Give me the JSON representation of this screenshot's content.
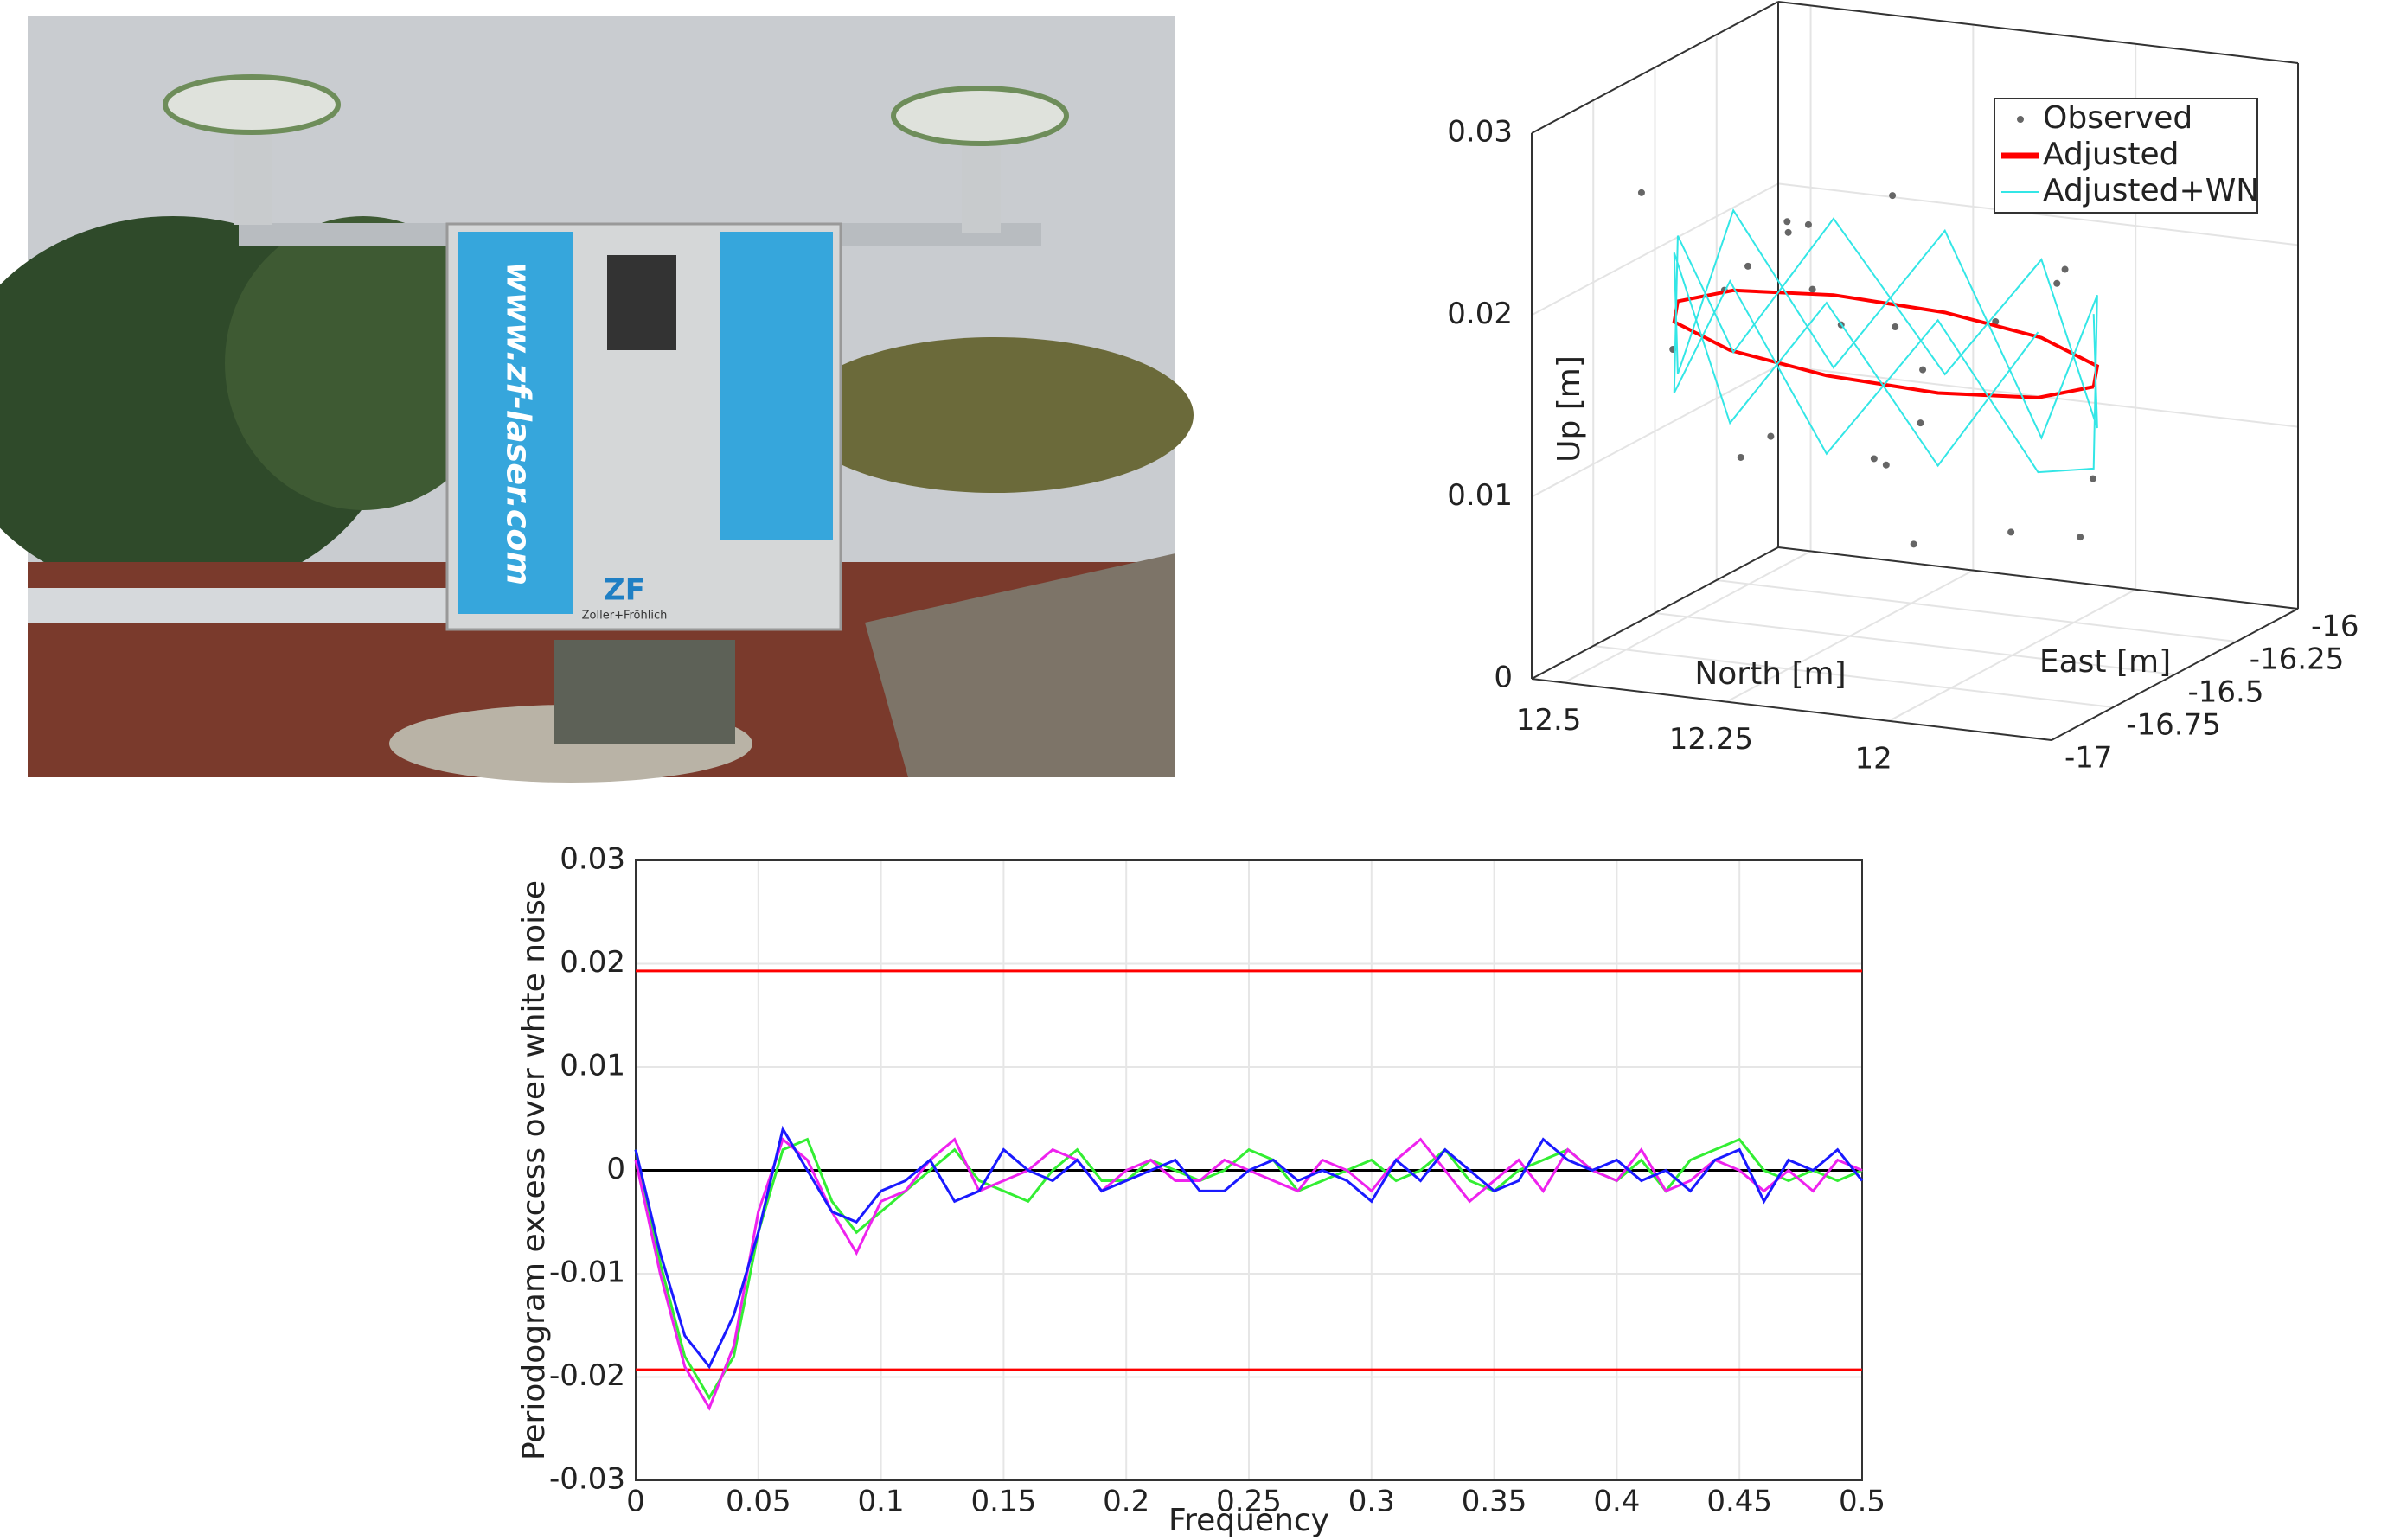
{
  "photo": {
    "label": "www.zf-laser.com",
    "logo": "ZF",
    "brand": "Zoller+Fröhlich"
  },
  "chart_data": [
    {
      "type": "scatter3d",
      "xlabel": "East [m]",
      "ylabel": "North [m]",
      "zlabel": "Up [m]",
      "xlim": [
        -17,
        -16
      ],
      "xticks": [
        -17,
        -16.75,
        -16.5,
        -16.25,
        -16
      ],
      "ylim": [
        11.75,
        12.55
      ],
      "yticks": [
        12,
        12.25,
        12.5
      ],
      "zlim": [
        0,
        0.03
      ],
      "zticks": [
        0,
        0.01,
        0.02,
        0.03
      ],
      "grid": true,
      "legend": "upper right",
      "series": [
        {
          "name": "Observed",
          "color": "#666666",
          "style": "points",
          "east": [
            -16.7,
            -16.55,
            -16.9,
            -16.6,
            -16.8,
            -16.52,
            -16.95,
            -16.65,
            -16.75,
            -16.58,
            -16.88,
            -16.7,
            -16.62,
            -16.98,
            -16.53,
            -16.82,
            -16.67,
            -16.9,
            -16.57,
            -16.77,
            -16.6,
            -16.93,
            -16.72,
            -16.85
          ],
          "north": [
            11.8,
            11.9,
            12.0,
            12.1,
            12.2,
            12.3,
            12.4,
            12.35,
            12.25,
            12.15,
            12.05,
            11.95,
            11.85,
            11.82,
            11.92,
            12.02,
            12.12,
            12.22,
            12.32,
            12.42,
            12.38,
            12.28,
            12.18,
            12.08
          ],
          "up": [
            0.012,
            0.022,
            0.009,
            0.016,
            0.025,
            0.019,
            0.027,
            0.021,
            0.024,
            0.018,
            0.013,
            0.02,
            0.008,
            0.011,
            0.021,
            0.015,
            0.026,
            0.014,
            0.023,
            0.017,
            0.01,
            0.022,
            0.019,
            0.013
          ]
        },
        {
          "name": "Adjusted",
          "color": "#ff0000",
          "style": "thick-line",
          "east": [
            -16.75,
            -16.63,
            -16.54,
            -16.51,
            -16.54,
            -16.63,
            -16.75,
            -16.87,
            -16.96,
            -16.99,
            -16.96,
            -16.87,
            -16.75
          ],
          "north": [
            11.78,
            11.82,
            11.94,
            12.1,
            12.26,
            12.38,
            12.42,
            12.38,
            12.26,
            12.1,
            11.94,
            11.82,
            11.78
          ],
          "up": [
            0.0175,
            0.0176,
            0.018,
            0.0185,
            0.019,
            0.0194,
            0.0195,
            0.0194,
            0.019,
            0.0185,
            0.018,
            0.0176,
            0.0175
          ]
        },
        {
          "name": "Adjusted+WN",
          "color": "#33e6e6",
          "style": "line",
          "east": [
            -16.75,
            -16.63,
            -16.54,
            -16.51,
            -16.54,
            -16.63,
            -16.75,
            -16.87,
            -16.96,
            -16.99,
            -16.96,
            -16.87,
            -16.75,
            -16.63,
            -16.54,
            -16.51,
            -16.54,
            -16.63,
            -16.75,
            -16.87,
            -16.96,
            -16.99,
            -16.96,
            -16.87
          ],
          "north": [
            11.78,
            11.82,
            11.94,
            12.1,
            12.26,
            12.38,
            12.42,
            12.38,
            12.26,
            12.1,
            11.94,
            11.82,
            11.78,
            11.82,
            11.94,
            12.1,
            12.26,
            12.38,
            12.42,
            12.38,
            12.26,
            12.1,
            11.94,
            11.82
          ],
          "up": [
            0.0215,
            0.0142,
            0.0223,
            0.0151,
            0.0232,
            0.016,
            0.0231,
            0.0155,
            0.0228,
            0.0142,
            0.022,
            0.0135,
            0.013,
            0.0215,
            0.0125,
            0.023,
            0.015,
            0.0238,
            0.0155,
            0.0232,
            0.015,
            0.0225,
            0.014,
            0.0212
          ]
        }
      ]
    },
    {
      "type": "line",
      "xlabel": "Frequency",
      "ylabel": "Periodogram excess over white noise",
      "xlim": [
        0,
        0.5
      ],
      "xticks": [
        0,
        0.05,
        0.1,
        0.15,
        0.2,
        0.25,
        0.3,
        0.35,
        0.4,
        0.45,
        0.5
      ],
      "ylim": [
        -0.03,
        0.03
      ],
      "yticks": [
        -0.03,
        -0.02,
        -0.01,
        0,
        0.01,
        0.02,
        0.03
      ],
      "grid": true,
      "x": [
        0,
        0.01,
        0.02,
        0.03,
        0.04,
        0.05,
        0.06,
        0.07,
        0.08,
        0.09,
        0.1,
        0.11,
        0.12,
        0.13,
        0.14,
        0.15,
        0.16,
        0.17,
        0.18,
        0.19,
        0.2,
        0.21,
        0.22,
        0.23,
        0.24,
        0.25,
        0.26,
        0.27,
        0.28,
        0.29,
        0.3,
        0.31,
        0.32,
        0.33,
        0.34,
        0.35,
        0.36,
        0.37,
        0.38,
        0.39,
        0.4,
        0.41,
        0.42,
        0.43,
        0.44,
        0.45,
        0.46,
        0.47,
        0.48,
        0.49,
        0.5
      ],
      "series": [
        {
          "color": "#ff0000",
          "x": [
            0,
            0.5
          ],
          "values": [
            0.0193,
            0.0193
          ]
        },
        {
          "color": "#ff0000",
          "x": [
            0,
            0.5
          ],
          "values": [
            -0.0193,
            -0.0193
          ]
        },
        {
          "color": "#000000",
          "x": [
            0,
            0.5
          ],
          "values": [
            0,
            0
          ]
        },
        {
          "color": "#33ee33",
          "values": [
            0.002,
            -0.009,
            -0.018,
            -0.022,
            -0.018,
            -0.006,
            0.002,
            0.003,
            -0.003,
            -0.006,
            -0.004,
            -0.002,
            0.0,
            0.002,
            -0.001,
            -0.002,
            -0.003,
            0.0,
            0.002,
            -0.001,
            -0.001,
            0.001,
            0.0,
            -0.001,
            0.0,
            0.002,
            0.001,
            -0.002,
            -0.001,
            0.0,
            0.001,
            -0.001,
            0.0,
            0.002,
            -0.001,
            -0.002,
            0.0,
            0.001,
            0.002,
            0.0,
            -0.001,
            0.001,
            -0.002,
            0.001,
            0.002,
            0.003,
            0.0,
            -0.001,
            0.0,
            -0.001,
            0.0
          ]
        },
        {
          "color": "#ee22ee",
          "values": [
            0.001,
            -0.01,
            -0.019,
            -0.023,
            -0.017,
            -0.004,
            0.003,
            0.001,
            -0.004,
            -0.008,
            -0.003,
            -0.002,
            0.001,
            0.003,
            -0.002,
            -0.001,
            0.0,
            0.002,
            0.001,
            -0.002,
            0.0,
            0.001,
            -0.001,
            -0.001,
            0.001,
            0.0,
            -0.001,
            -0.002,
            0.001,
            0.0,
            -0.002,
            0.001,
            0.003,
            0.0,
            -0.003,
            -0.001,
            0.001,
            -0.002,
            0.002,
            0.0,
            -0.001,
            0.002,
            -0.002,
            -0.001,
            0.001,
            0.0,
            -0.002,
            0.0,
            -0.002,
            0.001,
            0.0
          ]
        },
        {
          "color": "#1a1aff",
          "values": [
            0.002,
            -0.008,
            -0.016,
            -0.019,
            -0.014,
            -0.006,
            0.004,
            0.0,
            -0.004,
            -0.005,
            -0.002,
            -0.001,
            0.001,
            -0.003,
            -0.002,
            0.002,
            0.0,
            -0.001,
            0.001,
            -0.002,
            -0.001,
            0.0,
            0.001,
            -0.002,
            -0.002,
            0.0,
            0.001,
            -0.001,
            0.0,
            -0.001,
            -0.003,
            0.001,
            -0.001,
            0.002,
            0.0,
            -0.002,
            -0.001,
            0.003,
            0.001,
            0.0,
            0.001,
            -0.001,
            0.0,
            -0.002,
            0.001,
            0.002,
            -0.003,
            0.001,
            0.0,
            0.002,
            -0.001
          ]
        }
      ]
    }
  ]
}
